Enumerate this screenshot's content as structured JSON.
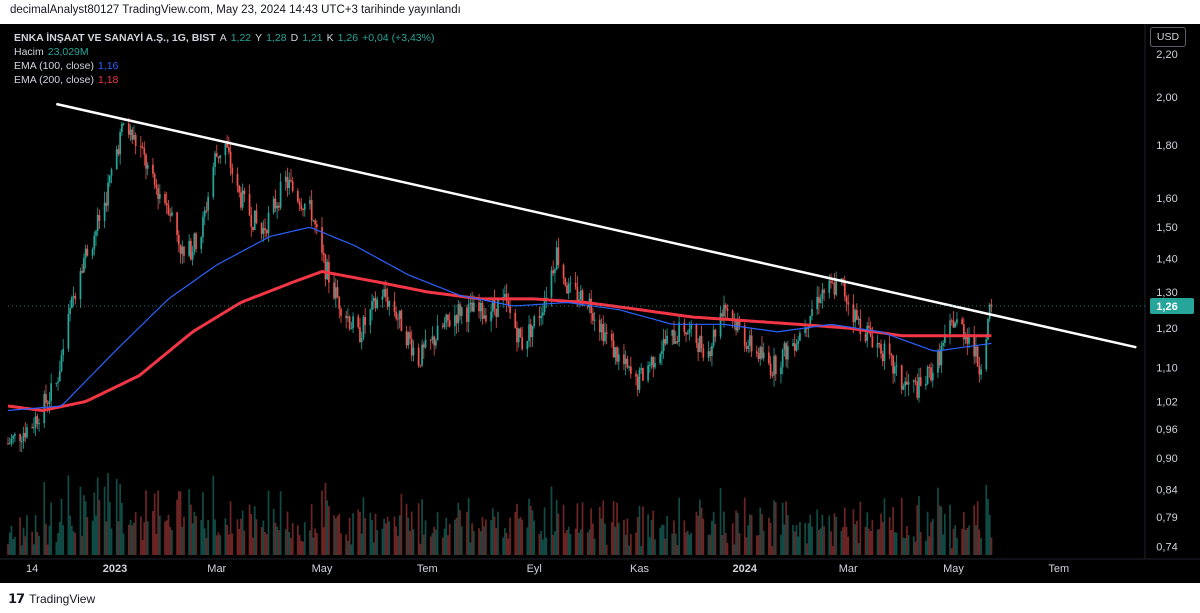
{
  "publish_note": "decimalAnalyst80127 TradingView.com, May 23, 2024 14:43 UTC+3 tarihinde yayınlandı",
  "legend": {
    "symbol": "ENKA İNŞAAT VE SANAYİ A.Ş., 1G, BIST",
    "open_label": "A",
    "open": "1,22",
    "high_label": "Y",
    "high": "1,28",
    "low_label": "D",
    "low": "1,21",
    "close_label": "K",
    "close": "1,26",
    "change": "+0,04 (+3,43%)",
    "volume_label": "Hacim",
    "volume": "23,029M",
    "ema100_label": "EMA (100, close)",
    "ema100": "1,16",
    "ema200_label": "EMA (200, close)",
    "ema200": "1,18"
  },
  "currency_button": "USD",
  "footer_brand": "TradingView",
  "colors": {
    "background": "#000000",
    "up": "#26a69a",
    "down": "#ef5350",
    "ema100": "#2962ff",
    "ema200": "#f23645",
    "trendline": "#ffffff",
    "axis_text": "#d1d4dc",
    "price_badge": "#26a69a"
  },
  "chart_data": {
    "type": "candlestick",
    "scale": "log",
    "ylim": [
      0.72,
      2.3
    ],
    "y_ticks": [
      "2,20",
      "2,00",
      "1,80",
      "1,60",
      "1,50",
      "1,40",
      "1,30",
      "1,20",
      "1,10",
      "1,02",
      "0,96",
      "0,90",
      "0,84",
      "0,79",
      "0,74"
    ],
    "y_tick_values": [
      2.2,
      2.0,
      1.8,
      1.6,
      1.5,
      1.4,
      1.3,
      1.2,
      1.1,
      1.02,
      0.96,
      0.9,
      0.84,
      0.79,
      0.74
    ],
    "x_ticks": [
      "14",
      "2023",
      "Mar",
      "May",
      "Tem",
      "Eyl",
      "Kas",
      "2024",
      "Mar",
      "May",
      "Tem"
    ],
    "x_tick_dates": [
      "2022-11-14",
      "2023-01-01",
      "2023-03-01",
      "2023-05-01",
      "2023-07-01",
      "2023-09-01",
      "2023-11-01",
      "2024-01-01",
      "2024-03-01",
      "2024-05-01",
      "2024-07-01"
    ],
    "last_price_label": "1,26",
    "last_price": 1.26,
    "price_anchors": [
      [
        "2022-10-31",
        0.93
      ],
      [
        "2022-11-14",
        0.97
      ],
      [
        "2022-11-28",
        1.06
      ],
      [
        "2022-12-05",
        1.22
      ],
      [
        "2022-12-12",
        1.38
      ],
      [
        "2022-12-19",
        1.46
      ],
      [
        "2022-12-26",
        1.58
      ],
      [
        "2023-01-02",
        1.78
      ],
      [
        "2023-01-06",
        1.88
      ],
      [
        "2023-01-16",
        1.78
      ],
      [
        "2023-01-23",
        1.65
      ],
      [
        "2023-02-01",
        1.58
      ],
      [
        "2023-02-10",
        1.4
      ],
      [
        "2023-02-20",
        1.48
      ],
      [
        "2023-02-28",
        1.75
      ],
      [
        "2023-03-06",
        1.8
      ],
      [
        "2023-03-13",
        1.62
      ],
      [
        "2023-03-27",
        1.48
      ],
      [
        "2023-04-10",
        1.66
      ],
      [
        "2023-04-25",
        1.55
      ],
      [
        "2023-05-01",
        1.4
      ],
      [
        "2023-05-08",
        1.3
      ],
      [
        "2023-05-22",
        1.18
      ],
      [
        "2023-06-05",
        1.3
      ],
      [
        "2023-06-12",
        1.25
      ],
      [
        "2023-06-26",
        1.12
      ],
      [
        "2023-07-10",
        1.2
      ],
      [
        "2023-07-20",
        1.25
      ],
      [
        "2023-08-01",
        1.24
      ],
      [
        "2023-08-15",
        1.27
      ],
      [
        "2023-08-25",
        1.16
      ],
      [
        "2023-09-05",
        1.25
      ],
      [
        "2023-09-14",
        1.42
      ],
      [
        "2023-09-21",
        1.3
      ],
      [
        "2023-10-02",
        1.28
      ],
      [
        "2023-10-16",
        1.15
      ],
      [
        "2023-10-30",
        1.06
      ],
      [
        "2023-11-13",
        1.15
      ],
      [
        "2023-11-27",
        1.2
      ],
      [
        "2023-12-11",
        1.14
      ],
      [
        "2023-12-20",
        1.27
      ],
      [
        "2024-01-03",
        1.16
      ],
      [
        "2024-01-17",
        1.1
      ],
      [
        "2024-02-01",
        1.18
      ],
      [
        "2024-02-14",
        1.3
      ],
      [
        "2024-02-26",
        1.32
      ],
      [
        "2024-03-06",
        1.22
      ],
      [
        "2024-03-20",
        1.15
      ],
      [
        "2024-04-01",
        1.06
      ],
      [
        "2024-04-12",
        1.05
      ],
      [
        "2024-04-22",
        1.12
      ],
      [
        "2024-05-01",
        1.22
      ],
      [
        "2024-05-10",
        1.18
      ],
      [
        "2024-05-16",
        1.1
      ],
      [
        "2024-05-23",
        1.26
      ]
    ],
    "ema100_anchors": [
      [
        "2022-10-31",
        1.0
      ],
      [
        "2022-12-01",
        1.01
      ],
      [
        "2023-01-01",
        1.14
      ],
      [
        "2023-02-01",
        1.28
      ],
      [
        "2023-03-01",
        1.38
      ],
      [
        "2023-04-01",
        1.47
      ],
      [
        "2023-04-24",
        1.5
      ],
      [
        "2023-05-20",
        1.44
      ],
      [
        "2023-06-20",
        1.35
      ],
      [
        "2023-07-20",
        1.29
      ],
      [
        "2023-08-20",
        1.26
      ],
      [
        "2023-09-20",
        1.27
      ],
      [
        "2023-10-20",
        1.25
      ],
      [
        "2023-11-20",
        1.21
      ],
      [
        "2023-12-20",
        1.21
      ],
      [
        "2024-01-20",
        1.19
      ],
      [
        "2024-02-20",
        1.21
      ],
      [
        "2024-03-20",
        1.19
      ],
      [
        "2024-04-20",
        1.14
      ],
      [
        "2024-05-23",
        1.16
      ]
    ],
    "ema200_anchors": [
      [
        "2022-10-31",
        1.01
      ],
      [
        "2022-11-20",
        1.0
      ],
      [
        "2022-12-15",
        1.02
      ],
      [
        "2023-01-15",
        1.08
      ],
      [
        "2023-02-15",
        1.19
      ],
      [
        "2023-03-15",
        1.27
      ],
      [
        "2023-04-15",
        1.33
      ],
      [
        "2023-05-01",
        1.36
      ],
      [
        "2023-06-01",
        1.33
      ],
      [
        "2023-07-01",
        1.3
      ],
      [
        "2023-08-01",
        1.28
      ],
      [
        "2023-09-01",
        1.28
      ],
      [
        "2023-10-01",
        1.27
      ],
      [
        "2023-11-01",
        1.25
      ],
      [
        "2023-12-01",
        1.23
      ],
      [
        "2024-01-01",
        1.22
      ],
      [
        "2024-02-01",
        1.21
      ],
      [
        "2024-03-01",
        1.2
      ],
      [
        "2024-04-01",
        1.18
      ],
      [
        "2024-05-23",
        1.18
      ]
    ],
    "trendline": {
      "start_date": "2022-11-28",
      "start_price": 1.97,
      "end_date": "2024-08-15",
      "end_price": 1.15
    }
  }
}
